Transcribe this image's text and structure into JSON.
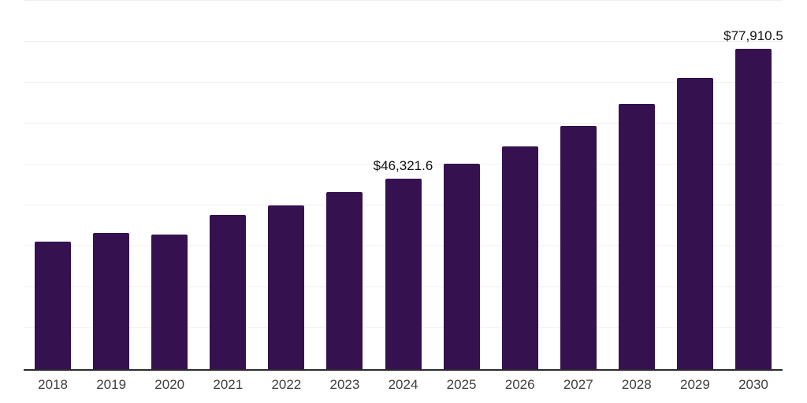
{
  "chart_data": {
    "type": "bar",
    "title": "",
    "categories": [
      "2018",
      "2019",
      "2020",
      "2021",
      "2022",
      "2023",
      "2024",
      "2025",
      "2026",
      "2027",
      "2028",
      "2029",
      "2030"
    ],
    "values": [
      31000,
      33150,
      32800,
      37550,
      39900,
      43050,
      46321.6,
      49900,
      54200,
      59200,
      64600,
      70900,
      77910.5
    ],
    "point_labels": {
      "2024": "$46,321.6",
      "2030": "$77,910.5"
    },
    "xlabel": "",
    "ylabel": "",
    "ylim": [
      0,
      90000
    ],
    "gridline_step": 10000,
    "grid": true,
    "legend_position": "none",
    "y_axis_labels_visible": false
  },
  "colors": {
    "bar": "#351150",
    "gridline": "#efefef",
    "axis_line": "#2b2b2b",
    "tick_label": "#3f3f3f",
    "data_label": "#111111",
    "background": "#ffffff"
  }
}
